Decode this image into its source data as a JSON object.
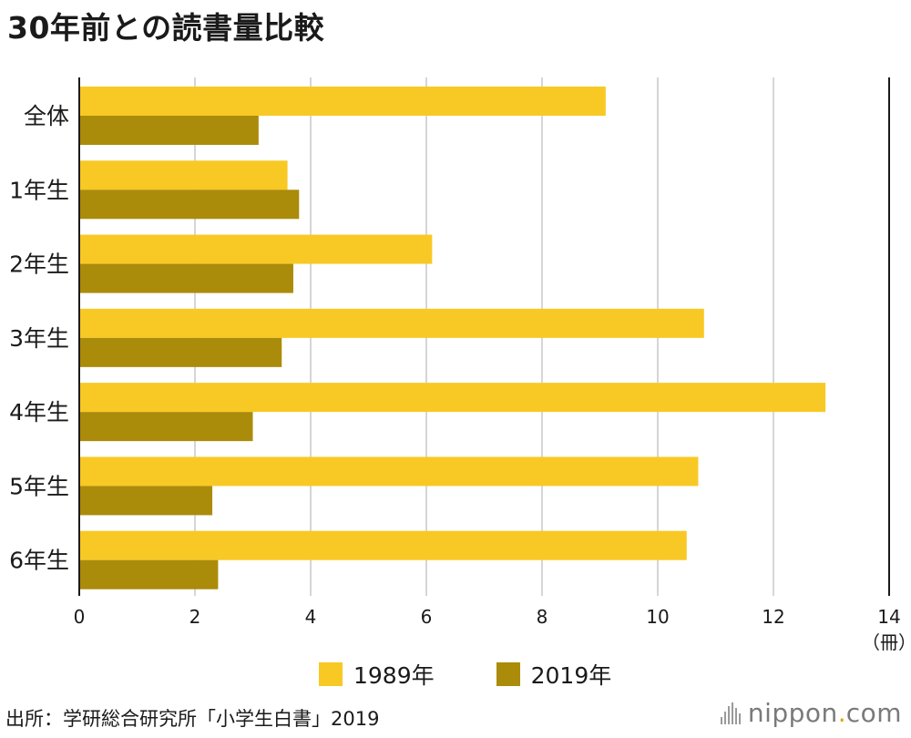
{
  "chart_data": {
    "type": "bar",
    "orientation": "horizontal",
    "title": "30年前との読書量比較",
    "categories": [
      "全体",
      "1年生",
      "2年生",
      "3年生",
      "4年生",
      "5年生",
      "6年生"
    ],
    "series": [
      {
        "name": "1989年",
        "color": "#f8c924",
        "values": [
          9.1,
          3.6,
          6.1,
          10.8,
          12.9,
          10.7,
          10.5
        ]
      },
      {
        "name": "2019年",
        "color": "#ab8b0a",
        "values": [
          3.1,
          3.8,
          3.7,
          3.5,
          3.0,
          2.3,
          2.4
        ]
      }
    ],
    "xlim": [
      0,
      14
    ],
    "xticks": [
      "0",
      "2",
      "4",
      "6",
      "8",
      "10",
      "12",
      "14"
    ],
    "xunit": "（冊）",
    "grid": true,
    "legend_position": "bottom"
  },
  "source": "出所：学研総合研究所「小学生白書」2019",
  "brand": {
    "name": "nippon",
    "dot": ".",
    "suffix": "com",
    "icon": "nippon-waveform-icon"
  }
}
